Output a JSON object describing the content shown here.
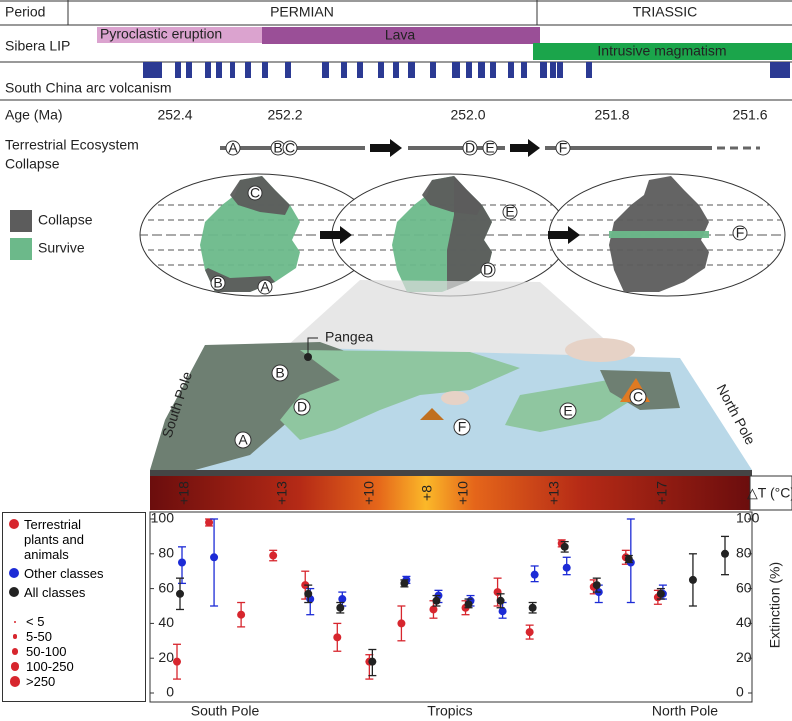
{
  "timeline": {
    "period_label": "Period",
    "periods": [
      "PERMIAN",
      "TRIASSIC"
    ],
    "lip_label": "Sibera LIP",
    "lip_phases": [
      "Pyroclastic eruption",
      "Lava",
      "Intrusive magmatism"
    ],
    "arc_label": "South China arc volcanism",
    "age_label": "Age (Ma)",
    "ages": [
      "252.4",
      "252.2",
      "252.0",
      "251.8",
      "251.6"
    ]
  },
  "collapse": {
    "label": [
      "Terrestrial Ecosystem",
      "Collapse"
    ],
    "sites": [
      "A",
      "B",
      "C",
      "D",
      "E",
      "F"
    ]
  },
  "maps": {
    "legend": [
      "Collapse",
      "Survive"
    ]
  },
  "globe3d": {
    "pangea": "Pangea",
    "south_pole": "South Pole",
    "north_pole": "North Pole"
  },
  "temperature": {
    "labels": [
      "+18",
      "+13",
      "+10",
      "+8",
      "+10",
      "+13",
      "+17"
    ],
    "title": "△T (°C)"
  },
  "chart_data": {
    "type": "errorbar",
    "categories": [
      null,
      null,
      null,
      null,
      null,
      null,
      null,
      null,
      null,
      null,
      null,
      null,
      null,
      null,
      null,
      null,
      null,
      null
    ],
    "x_labels": [
      "South Pole",
      "Tropics",
      "North Pole"
    ],
    "y2label": "Extinction (%)",
    "ylim": [
      0,
      100
    ],
    "yticks": [
      0,
      20,
      40,
      60,
      80,
      100
    ],
    "y2lim": [
      0,
      100
    ],
    "y2ticks": [
      0,
      20,
      40,
      60,
      80,
      100
    ],
    "series": [
      {
        "name": "Terrestrial plants and animals",
        "color": "#d7262e",
        "values": [
          18,
          98,
          45,
          79,
          62,
          32,
          18,
          40,
          48,
          49,
          58,
          35,
          86,
          61,
          78,
          55,
          null,
          null
        ],
        "low": [
          8,
          96,
          38,
          76,
          54,
          24,
          8,
          30,
          43,
          45,
          50,
          31,
          84,
          57,
          74,
          51,
          null,
          null
        ],
        "high": [
          28,
          100,
          52,
          82,
          70,
          40,
          22,
          50,
          53,
          53,
          66,
          39,
          88,
          65,
          82,
          59,
          null,
          null
        ]
      },
      {
        "name": "Other classes",
        "color": "#1c2bd6",
        "values": [
          75,
          78,
          null,
          null,
          54,
          54,
          null,
          65,
          56,
          53,
          47,
          68,
          72,
          58,
          75,
          57,
          null,
          null
        ],
        "low": [
          63,
          50,
          null,
          null,
          45,
          50,
          null,
          63,
          52,
          50,
          43,
          64,
          68,
          52,
          52,
          54,
          null,
          null
        ],
        "high": [
          84,
          100,
          null,
          null,
          60,
          58,
          null,
          67,
          59,
          56,
          52,
          73,
          78,
          62,
          100,
          62,
          null,
          null
        ]
      },
      {
        "name": "All classes",
        "color": "#222222",
        "values": [
          57,
          null,
          null,
          null,
          57,
          49,
          18,
          63,
          53,
          51,
          53,
          49,
          84,
          62,
          77,
          57,
          65,
          80
        ],
        "low": [
          48,
          null,
          null,
          null,
          52,
          46,
          10,
          61,
          50,
          49,
          49,
          46,
          81,
          58,
          75,
          54,
          50,
          68
        ],
        "high": [
          66,
          null,
          null,
          null,
          62,
          52,
          25,
          65,
          56,
          54,
          57,
          52,
          87,
          66,
          79,
          60,
          80,
          90
        ]
      }
    ],
    "size_legend": [
      "< 5",
      "5-50",
      "50-100",
      "100-250",
      ">250"
    ]
  }
}
